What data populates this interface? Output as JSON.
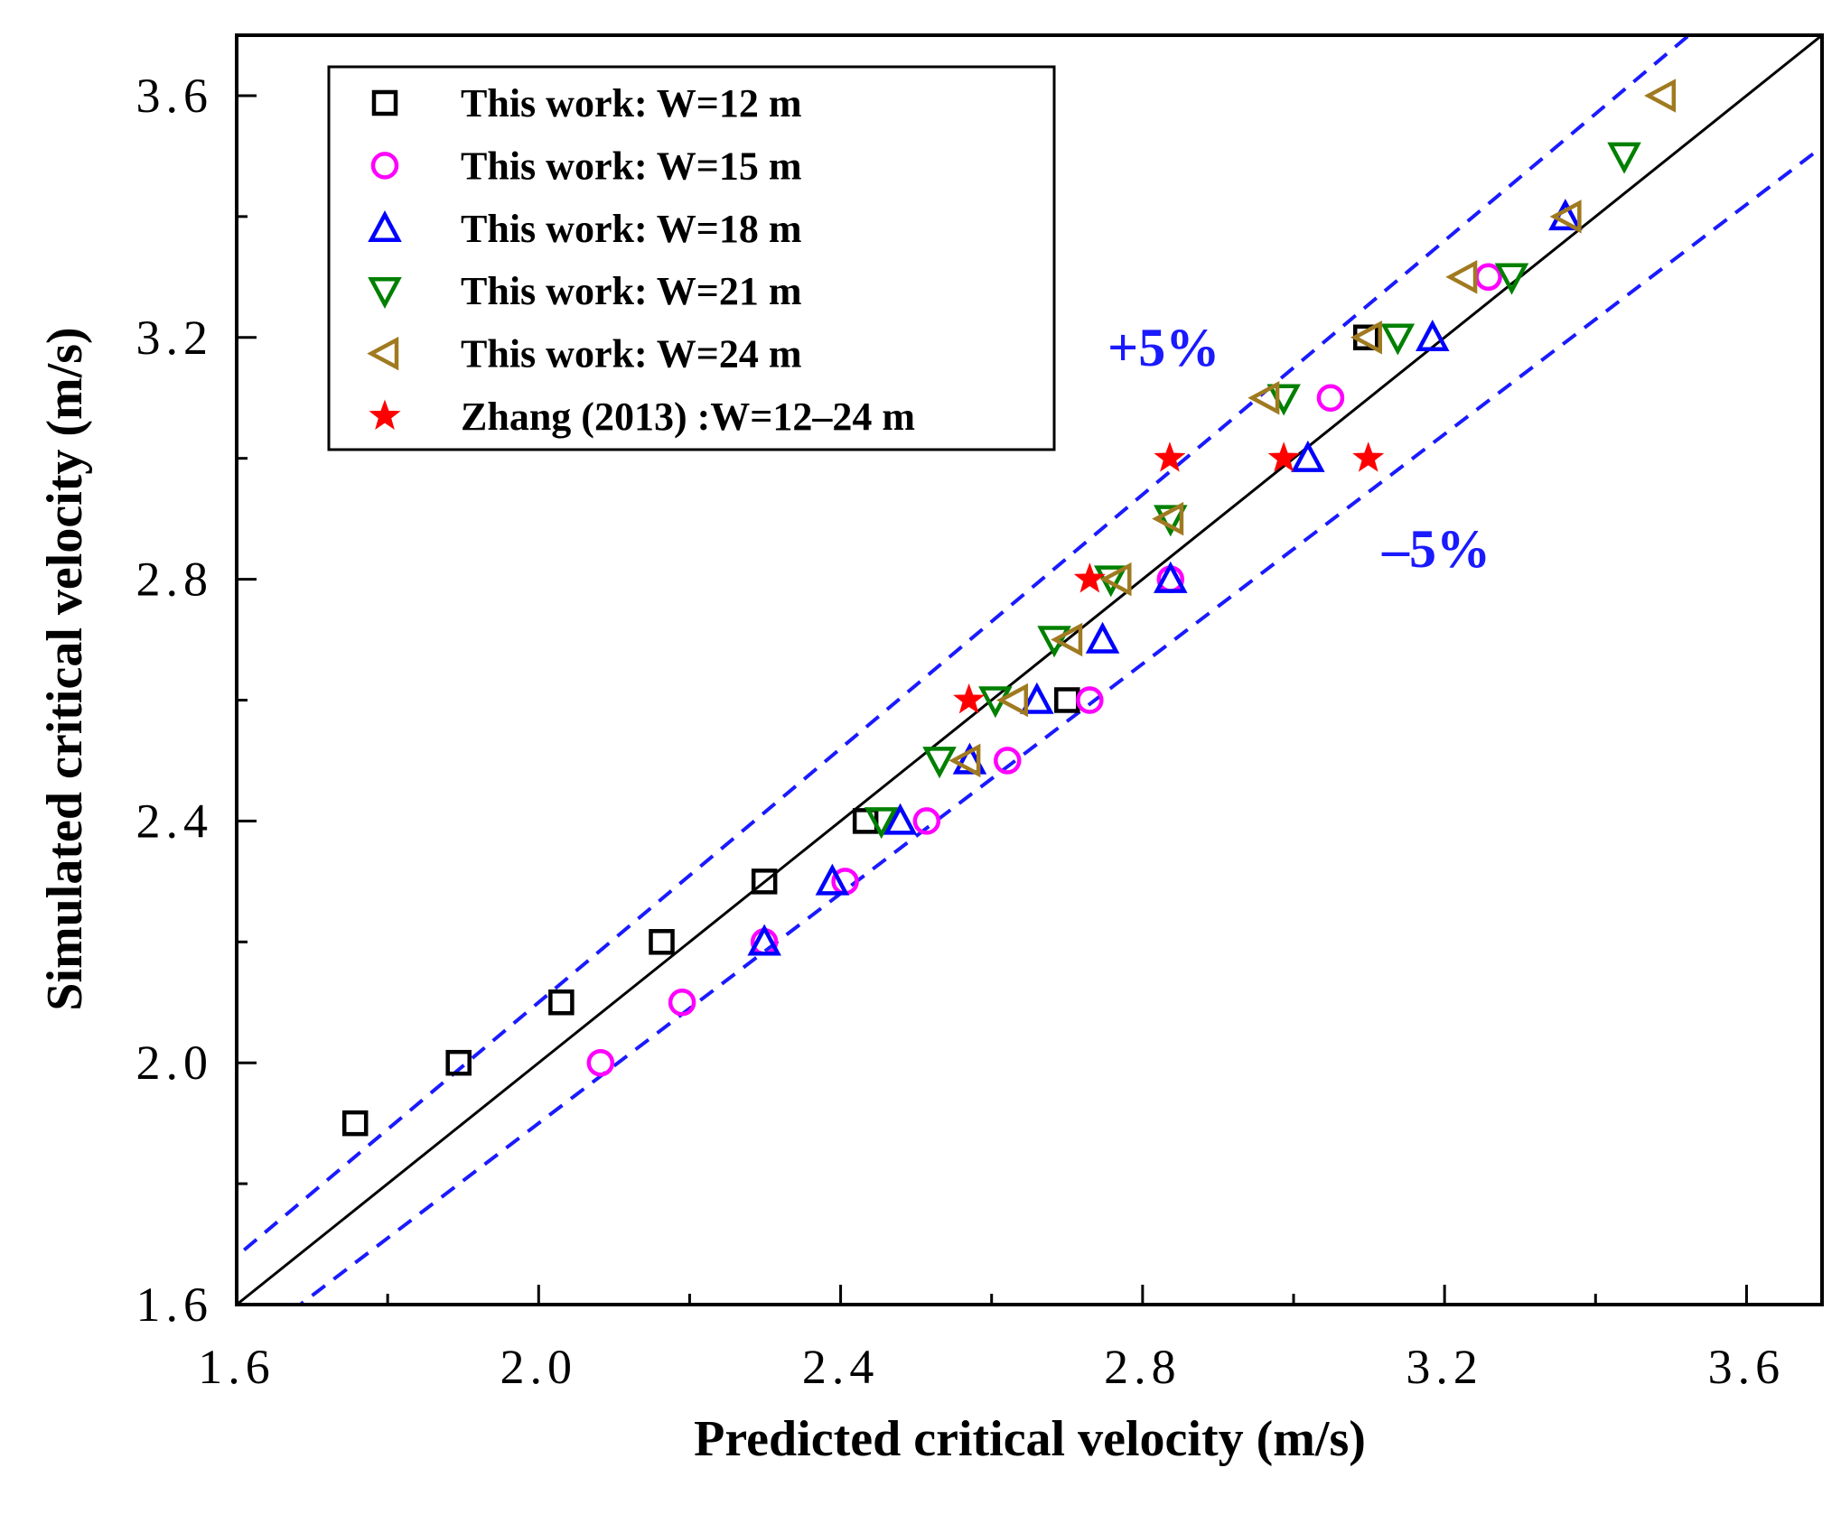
{
  "chart_data": {
    "type": "scatter",
    "title": "",
    "xlabel": "Predicted critical velocity (m/s)",
    "ylabel": "Simulated critical velocity (m/s)",
    "xlim": [
      1.6,
      3.7
    ],
    "ylim": [
      1.6,
      3.7
    ],
    "xticks": [
      "1.6",
      "2.0",
      "2.4",
      "2.8",
      "3.2",
      "3.6"
    ],
    "yticks": [
      "1.6",
      "2.0",
      "2.4",
      "2.8",
      "3.2",
      "3.6"
    ],
    "grid": false,
    "legend_position": "top-left",
    "reference_lines": [
      {
        "name": "y=x",
        "slope": 1.0,
        "color": "#000000",
        "style": "solid"
      },
      {
        "name": "+5%",
        "slope": 1.05,
        "color": "#1a1aff",
        "style": "dashed",
        "label": "+5%"
      },
      {
        "name": "-5%",
        "slope": 0.95,
        "color": "#1a1aff",
        "style": "dashed",
        "label": "–5%"
      }
    ],
    "series": [
      {
        "name": "This work: W=12 m",
        "marker": "square",
        "color": "#000000",
        "x": [
          1.757,
          1.894,
          2.03,
          2.163,
          2.299,
          2.433,
          2.7,
          3.096
        ],
        "y": [
          1.9,
          2.0,
          2.1,
          2.2,
          2.3,
          2.4,
          2.6,
          3.2
        ]
      },
      {
        "name": "This work: W=15 m",
        "marker": "circle",
        "color": "#ff00ff",
        "x": [
          2.082,
          2.19,
          2.299,
          2.406,
          2.514,
          2.621,
          2.73,
          2.837,
          3.049,
          3.258
        ],
        "y": [
          2.0,
          2.1,
          2.2,
          2.3,
          2.4,
          2.5,
          2.6,
          2.8,
          3.1,
          3.3
        ]
      },
      {
        "name": "This work: W=18 m",
        "marker": "triangle-up",
        "color": "#0000ff",
        "x": [
          2.299,
          2.389,
          2.479,
          2.571,
          2.66,
          2.747,
          2.837,
          3.019,
          3.184,
          3.36
        ],
        "y": [
          2.2,
          2.3,
          2.4,
          2.5,
          2.6,
          2.7,
          2.8,
          3.0,
          3.2,
          3.4
        ]
      },
      {
        "name": "This work: W=21 m",
        "marker": "triangle-down",
        "color": "#008000",
        "x": [
          2.454,
          2.531,
          2.605,
          2.683,
          2.758,
          2.837,
          2.987,
          3.138,
          3.289,
          3.438
        ],
        "y": [
          2.4,
          2.5,
          2.6,
          2.7,
          2.8,
          2.9,
          3.1,
          3.2,
          3.3,
          3.5
        ]
      },
      {
        "name": "This work: W=24 m",
        "marker": "triangle-left",
        "color": "#a07a20",
        "x": [
          2.567,
          2.63,
          2.702,
          2.767,
          2.836,
          2.963,
          3.099,
          3.225,
          3.363,
          3.488
        ],
        "y": [
          2.5,
          2.6,
          2.7,
          2.8,
          2.9,
          3.1,
          3.2,
          3.3,
          3.4,
          3.6
        ]
      },
      {
        "name": "Zhang (2013) :W=12–24 m",
        "marker": "star",
        "color": "#ff0000",
        "x": [
          2.57,
          2.73,
          2.836,
          2.987,
          3.099
        ],
        "y": [
          2.6,
          2.8,
          3.0,
          3.0,
          3.0
        ]
      }
    ]
  }
}
